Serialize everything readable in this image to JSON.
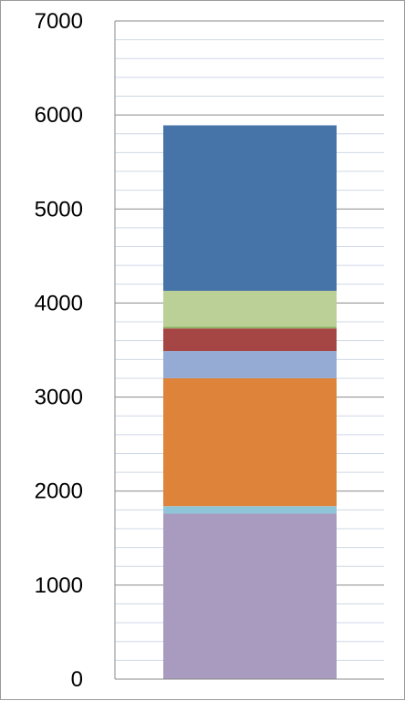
{
  "chart_data": {
    "type": "bar",
    "stacked": true,
    "categories": [
      ""
    ],
    "series": [
      {
        "values": [
          1760
        ],
        "color": "#A99BC0"
      },
      {
        "values": [
          80
        ],
        "color": "#8FC5D8"
      },
      {
        "values": [
          1360
        ],
        "color": "#DD843A"
      },
      {
        "values": [
          290
        ],
        "color": "#96ABD4"
      },
      {
        "values": [
          240
        ],
        "color": "#A64644"
      },
      {
        "values": [
          20
        ],
        "color": "#8DB262"
      },
      {
        "values": [
          380
        ],
        "color": "#BBD097"
      },
      {
        "values": [
          1760
        ],
        "color": "#4674A8"
      }
    ],
    "ylim": [
      0,
      7000
    ],
    "y_ticks": [
      0,
      1000,
      2000,
      3000,
      4000,
      5000,
      6000,
      7000
    ],
    "y_tick_labels": [
      "0",
      "1000",
      "2000",
      "3000",
      "4000",
      "5000",
      "6000",
      "7000"
    ],
    "minor_step": 200,
    "grid": true,
    "legend": "none",
    "title": "",
    "xlabel": "",
    "ylabel": ""
  }
}
